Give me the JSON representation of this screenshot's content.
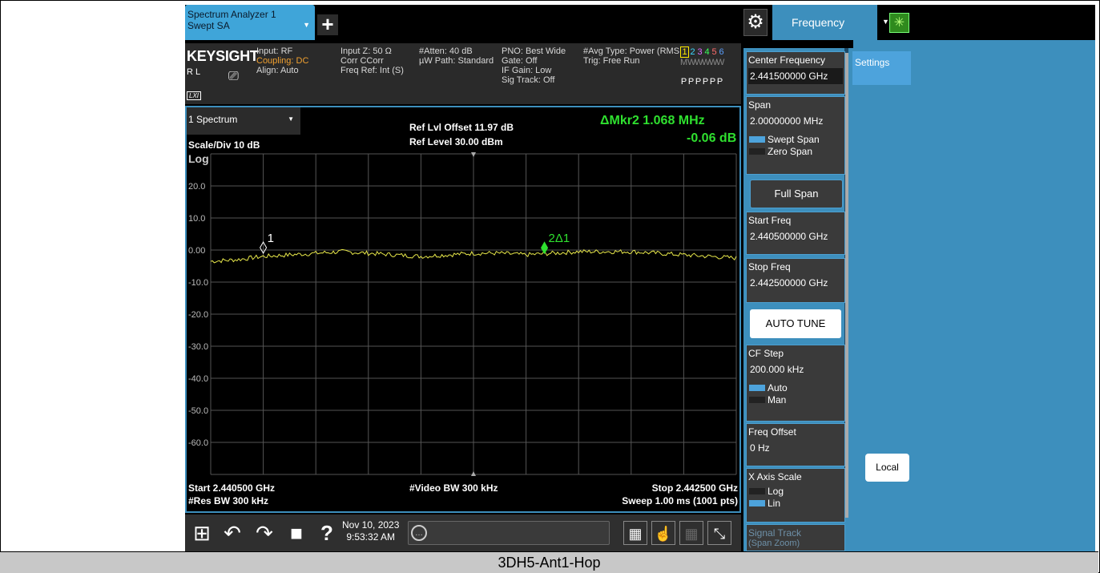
{
  "caption": "3DH5-Ant1-Hop",
  "topbar": {
    "tab_title_line1": "Spectrum Analyzer 1",
    "tab_title_line2": "Swept SA",
    "menu_label": "Frequency"
  },
  "info": {
    "brand": "KEYSIGHT",
    "rl": "R L",
    "lxi": "LXI",
    "col1": [
      "Input: RF",
      "Coupling: DC",
      "Align: Auto"
    ],
    "col2": [
      "Input Z: 50 Ω",
      "Corr CCorr",
      "Freq Ref: Int (S)"
    ],
    "col3": [
      "#Atten: 40 dB",
      "µW Path: Standard"
    ],
    "col4": [
      "PNO: Best Wide",
      "Gate: Off",
      "IF Gain: Low",
      "Sig Track: Off"
    ],
    "col5": [
      "#Avg Type: Power (RMS)",
      "Trig: Free Run"
    ],
    "trace_numbers": [
      "1",
      "2",
      "3",
      "4",
      "5",
      "6"
    ],
    "trace_types": [
      "M",
      "W",
      "W",
      "W",
      "W",
      "W"
    ],
    "trace_detectors": [
      "P",
      "P",
      "P",
      "P",
      "P",
      "P"
    ]
  },
  "spectrum": {
    "window_label": "1 Spectrum",
    "scale_div": "Scale/Div 10 dB",
    "log": "Log",
    "ref_offset": "Ref Lvl Offset 11.97 dB",
    "ref_level": "Ref Level 30.00 dBm",
    "marker_delta": "ΔMkr2  1.068 MHz",
    "marker_value": "-0.06 dB",
    "y_ticks": [
      "20.0",
      "10.0",
      "0.00",
      "-10.0",
      "-20.0",
      "-30.0",
      "-40.0",
      "-50.0",
      "-60.0"
    ],
    "marker1_label": "1",
    "marker2_label": "2Δ1",
    "start": "Start 2.440500 GHz",
    "res_bw": "#Res BW 300 kHz",
    "video_bw": "#Video BW 300 kHz",
    "stop": "Stop 2.442500 GHz",
    "sweep": "Sweep 1.00 ms (1001 pts)"
  },
  "chart_data": {
    "type": "line",
    "x_unit": "GHz",
    "y_unit": "dBm",
    "ylim": [
      -70,
      30
    ],
    "xlim": [
      2.4405,
      2.4425
    ],
    "series": [
      {
        "x": [
          2.4405,
          2.4406,
          2.4407,
          2.4408,
          2.4409,
          2.441,
          2.4411,
          2.4412,
          2.4413,
          2.4414,
          2.4415,
          2.4416,
          2.4417,
          2.4418,
          2.4419,
          2.442,
          2.4421,
          2.4422,
          2.4423,
          2.4424,
          2.4425
        ],
        "values": [
          -3.5,
          -3.0,
          -2.0,
          -1.5,
          -1.0,
          -0.5,
          -1.0,
          -1.5,
          -2.0,
          -1.5,
          -1.0,
          -1.0,
          -1.5,
          -1.0,
          -0.5,
          -0.5,
          -0.5,
          -1.0,
          -1.5,
          -2.0,
          -2.5
        ]
      }
    ],
    "markers": [
      {
        "label": "1",
        "x": 2.4407,
        "y": 0.0
      },
      {
        "label": "2Δ1",
        "x": 2.44177,
        "y": -0.06
      }
    ]
  },
  "taskbar": {
    "date": "Nov 10, 2023",
    "time": "9:53:32 AM"
  },
  "softkeys": {
    "center_freq_title": "Center Frequency",
    "center_freq_value": "2.441500000 GHz",
    "span_title": "Span",
    "span_value": "2.00000000 MHz",
    "swept_span": "Swept Span",
    "zero_span": "Zero Span",
    "full_span": "Full Span",
    "start_title": "Start Freq",
    "start_value": "2.440500000 GHz",
    "stop_title": "Stop Freq",
    "stop_value": "2.442500000 GHz",
    "auto_tune": "AUTO TUNE",
    "cf_step_title": "CF Step",
    "cf_step_value": "200.000 kHz",
    "auto": "Auto",
    "man": "Man",
    "freq_offset_title": "Freq Offset",
    "freq_offset_value": "0 Hz",
    "x_axis_title": "X Axis Scale",
    "log": "Log",
    "lin": "Lin",
    "signal_track": "Signal Track",
    "span_zoom": "(Span Zoom)"
  },
  "settings_tab": "Settings",
  "local_button": "Local"
}
